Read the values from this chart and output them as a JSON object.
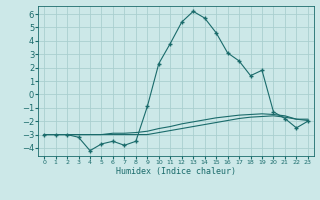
{
  "xlabel": "Humidex (Indice chaleur)",
  "background_color": "#cce8e8",
  "grid_color": "#aacfcf",
  "line_color": "#1a6b6b",
  "xlim": [
    -0.5,
    23.5
  ],
  "ylim": [
    -4.6,
    6.6
  ],
  "xticks": [
    0,
    1,
    2,
    3,
    4,
    5,
    6,
    7,
    8,
    9,
    10,
    11,
    12,
    13,
    14,
    15,
    16,
    17,
    18,
    19,
    20,
    21,
    22,
    23
  ],
  "yticks": [
    -4,
    -3,
    -2,
    -1,
    0,
    1,
    2,
    3,
    4,
    5,
    6
  ],
  "line1_x": [
    0,
    1,
    2,
    3,
    4,
    5,
    6,
    7,
    8,
    9,
    10,
    11,
    12,
    13,
    14,
    15,
    16,
    17,
    18,
    19,
    20,
    21,
    22,
    23
  ],
  "line1_y": [
    -3.0,
    -3.0,
    -3.0,
    -3.2,
    -4.2,
    -3.7,
    -3.5,
    -3.8,
    -3.5,
    -0.9,
    2.3,
    3.8,
    5.4,
    6.2,
    5.7,
    4.6,
    3.1,
    2.5,
    1.4,
    1.8,
    -1.3,
    -1.8,
    -2.5,
    -2.0
  ],
  "line2_x": [
    0,
    1,
    2,
    3,
    4,
    5,
    6,
    7,
    8,
    9,
    10,
    11,
    12,
    13,
    14,
    15,
    16,
    17,
    18,
    19,
    20,
    21,
    22,
    23
  ],
  "line2_y": [
    -3.0,
    -3.0,
    -3.0,
    -3.0,
    -3.0,
    -3.0,
    -2.9,
    -2.9,
    -2.85,
    -2.75,
    -2.55,
    -2.4,
    -2.2,
    -2.05,
    -1.9,
    -1.75,
    -1.65,
    -1.55,
    -1.5,
    -1.45,
    -1.5,
    -1.6,
    -1.85,
    -1.95
  ],
  "line3_x": [
    0,
    1,
    2,
    3,
    4,
    5,
    6,
    7,
    8,
    9,
    10,
    11,
    12,
    13,
    14,
    15,
    16,
    17,
    18,
    19,
    20,
    21,
    22,
    23
  ],
  "line3_y": [
    -3.0,
    -3.0,
    -3.0,
    -3.0,
    -3.0,
    -3.0,
    -3.0,
    -3.0,
    -3.0,
    -3.0,
    -2.85,
    -2.7,
    -2.55,
    -2.4,
    -2.25,
    -2.1,
    -1.95,
    -1.8,
    -1.7,
    -1.65,
    -1.6,
    -1.7,
    -1.85,
    -1.85
  ]
}
